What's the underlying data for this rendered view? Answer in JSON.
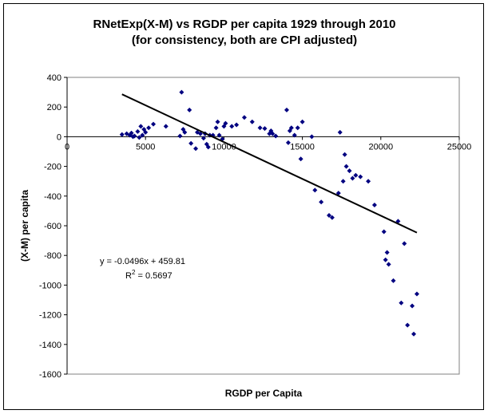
{
  "chart_data": {
    "type": "scatter",
    "title_line1": "RNetExp(X-M)  vs RGDP per capita 1929 through 2010",
    "title_line2": "(for consistency, both are CPI adjusted)",
    "xlabel": "RGDP per Capita",
    "ylabel": "(X-M) per capita",
    "xlim": [
      0,
      25000
    ],
    "ylim": [
      -1600,
      400
    ],
    "x_ticks": [
      0,
      5000,
      10000,
      15000,
      20000,
      25000
    ],
    "x_tick_labels": [
      "0",
      "5000",
      "10000",
      "15000",
      "20000",
      "25000"
    ],
    "y_ticks": [
      400,
      200,
      0,
      -200,
      -400,
      -600,
      -800,
      -1000,
      -1200,
      -1400,
      -1600
    ],
    "y_tick_labels": [
      "400",
      "200",
      "0",
      "-200",
      "-400",
      "-600",
      "-800",
      "-1000",
      "-1200",
      "-1400",
      "-1600"
    ],
    "marker_color": "#000080",
    "trendline": {
      "slope": -0.0496,
      "intercept": 459.81,
      "x_range": [
        3500,
        22300
      ],
      "equation_text": "y = -0.0496x + 459.81",
      "r2_prefix": "R",
      "r2_exponent": "2",
      "r2_suffix": " = 0.5697"
    },
    "points": [
      [
        3500,
        15
      ],
      [
        3800,
        20
      ],
      [
        4000,
        10
      ],
      [
        4100,
        25
      ],
      [
        4200,
        0
      ],
      [
        4300,
        5
      ],
      [
        4500,
        35
      ],
      [
        4600,
        -5
      ],
      [
        4700,
        70
      ],
      [
        4800,
        10
      ],
      [
        4900,
        50
      ],
      [
        5000,
        30
      ],
      [
        5200,
        60
      ],
      [
        5500,
        85
      ],
      [
        6300,
        70
      ],
      [
        7200,
        5
      ],
      [
        7300,
        300
      ],
      [
        7400,
        50
      ],
      [
        7500,
        30
      ],
      [
        7800,
        180
      ],
      [
        7900,
        -45
      ],
      [
        8200,
        -80
      ],
      [
        8300,
        30
      ],
      [
        8500,
        20
      ],
      [
        8700,
        -10
      ],
      [
        8800,
        20
      ],
      [
        8900,
        -50
      ],
      [
        9000,
        -70
      ],
      [
        9100,
        10
      ],
      [
        9300,
        10
      ],
      [
        9500,
        60
      ],
      [
        9600,
        100
      ],
      [
        9700,
        10
      ],
      [
        9900,
        -15
      ],
      [
        10000,
        70
      ],
      [
        10100,
        90
      ],
      [
        10500,
        70
      ],
      [
        10800,
        80
      ],
      [
        11300,
        130
      ],
      [
        11800,
        100
      ],
      [
        12300,
        60
      ],
      [
        12600,
        55
      ],
      [
        12900,
        20
      ],
      [
        13000,
        40
      ],
      [
        13100,
        20
      ],
      [
        13300,
        5
      ],
      [
        14000,
        180
      ],
      [
        14100,
        -40
      ],
      [
        14200,
        40
      ],
      [
        14300,
        60
      ],
      [
        14500,
        10
      ],
      [
        14700,
        60
      ],
      [
        14900,
        -150
      ],
      [
        15000,
        100
      ],
      [
        15600,
        0
      ],
      [
        15800,
        -360
      ],
      [
        16200,
        -440
      ],
      [
        16700,
        -530
      ],
      [
        16900,
        -545
      ],
      [
        17300,
        -380
      ],
      [
        17400,
        30
      ],
      [
        17600,
        -300
      ],
      [
        17700,
        -120
      ],
      [
        17800,
        -200
      ],
      [
        18000,
        -230
      ],
      [
        18200,
        -280
      ],
      [
        18400,
        -260
      ],
      [
        18700,
        -270
      ],
      [
        19200,
        -300
      ],
      [
        19600,
        -460
      ],
      [
        20200,
        -640
      ],
      [
        20300,
        -830
      ],
      [
        20400,
        -780
      ],
      [
        20500,
        -860
      ],
      [
        20800,
        -970
      ],
      [
        21100,
        -570
      ],
      [
        21300,
        -1120
      ],
      [
        21500,
        -720
      ],
      [
        21700,
        -1270
      ],
      [
        22000,
        -1140
      ],
      [
        22100,
        -1330
      ],
      [
        22300,
        -1060
      ]
    ]
  }
}
